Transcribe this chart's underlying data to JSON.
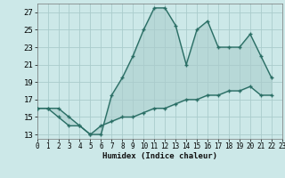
{
  "title": "",
  "xlabel": "Humidex (Indice chaleur)",
  "background_color": "#cce8e8",
  "grid_color": "#aacccc",
  "line_color": "#2a6e65",
  "x_upper": [
    0,
    1,
    2,
    3,
    4,
    5,
    6,
    7,
    8,
    9,
    10,
    11,
    12,
    13,
    14,
    15,
    16,
    17,
    18,
    19,
    20,
    21,
    22
  ],
  "y_upper": [
    16.0,
    16.0,
    16.0,
    15.0,
    14.0,
    13.0,
    13.0,
    17.5,
    19.5,
    22.0,
    25.0,
    27.5,
    27.5,
    25.5,
    21.0,
    25.0,
    26.0,
    23.0,
    23.0,
    23.0,
    24.5,
    22.0,
    19.5
  ],
  "x_lower": [
    0,
    1,
    2,
    3,
    4,
    5,
    6,
    7,
    8,
    9,
    10,
    11,
    12,
    13,
    14,
    15,
    16,
    17,
    18,
    19,
    20,
    21,
    22
  ],
  "y_lower": [
    16.0,
    16.0,
    15.0,
    14.0,
    14.0,
    13.0,
    14.0,
    14.5,
    15.0,
    15.0,
    15.5,
    16.0,
    16.0,
    16.5,
    17.0,
    17.0,
    17.5,
    17.5,
    18.0,
    18.0,
    18.5,
    17.5,
    17.5
  ],
  "xlim": [
    0,
    23
  ],
  "ylim": [
    12.5,
    28.0
  ],
  "yticks": [
    13,
    15,
    17,
    19,
    21,
    23,
    25,
    27
  ],
  "xticks": [
    0,
    1,
    2,
    3,
    4,
    5,
    6,
    7,
    8,
    9,
    10,
    11,
    12,
    13,
    14,
    15,
    16,
    17,
    18,
    19,
    20,
    21,
    22,
    23
  ]
}
